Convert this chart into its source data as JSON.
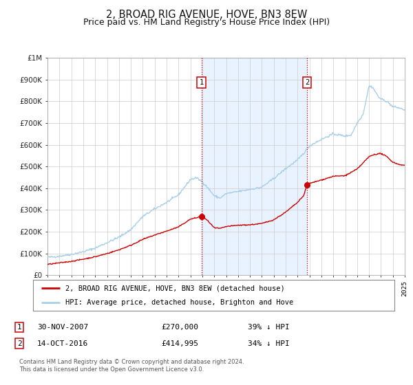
{
  "title": "2, BROAD RIG AVENUE, HOVE, BN3 8EW",
  "subtitle": "Price paid vs. HM Land Registry's House Price Index (HPI)",
  "title_fontsize": 10.5,
  "subtitle_fontsize": 9,
  "bg_color": "#ffffff",
  "plot_bg_color": "#ffffff",
  "grid_color": "#cccccc",
  "hpi_color": "#a8cfe8",
  "price_color": "#cc0000",
  "vline_color": "#cc0000",
  "shade_color": "#ddeeff",
  "sale1_date": 2007.92,
  "sale1_price": 270000,
  "sale2_date": 2016.79,
  "sale2_price": 414995,
  "legend_label_price": "2, BROAD RIG AVENUE, HOVE, BN3 8EW (detached house)",
  "legend_label_hpi": "HPI: Average price, detached house, Brighton and Hove",
  "footer1": "Contains HM Land Registry data © Crown copyright and database right 2024.",
  "footer2": "This data is licensed under the Open Government Licence v3.0.",
  "table_row1": [
    "1",
    "30-NOV-2007",
    "£270,000",
    "39% ↓ HPI"
  ],
  "table_row2": [
    "2",
    "14-OCT-2016",
    "£414,995",
    "34% ↓ HPI"
  ],
  "xmin": 1995,
  "xmax": 2025,
  "ymin": 0,
  "ymax": 1000000,
  "yticks": [
    0,
    100000,
    200000,
    300000,
    400000,
    500000,
    600000,
    700000,
    800000,
    900000,
    1000000
  ]
}
